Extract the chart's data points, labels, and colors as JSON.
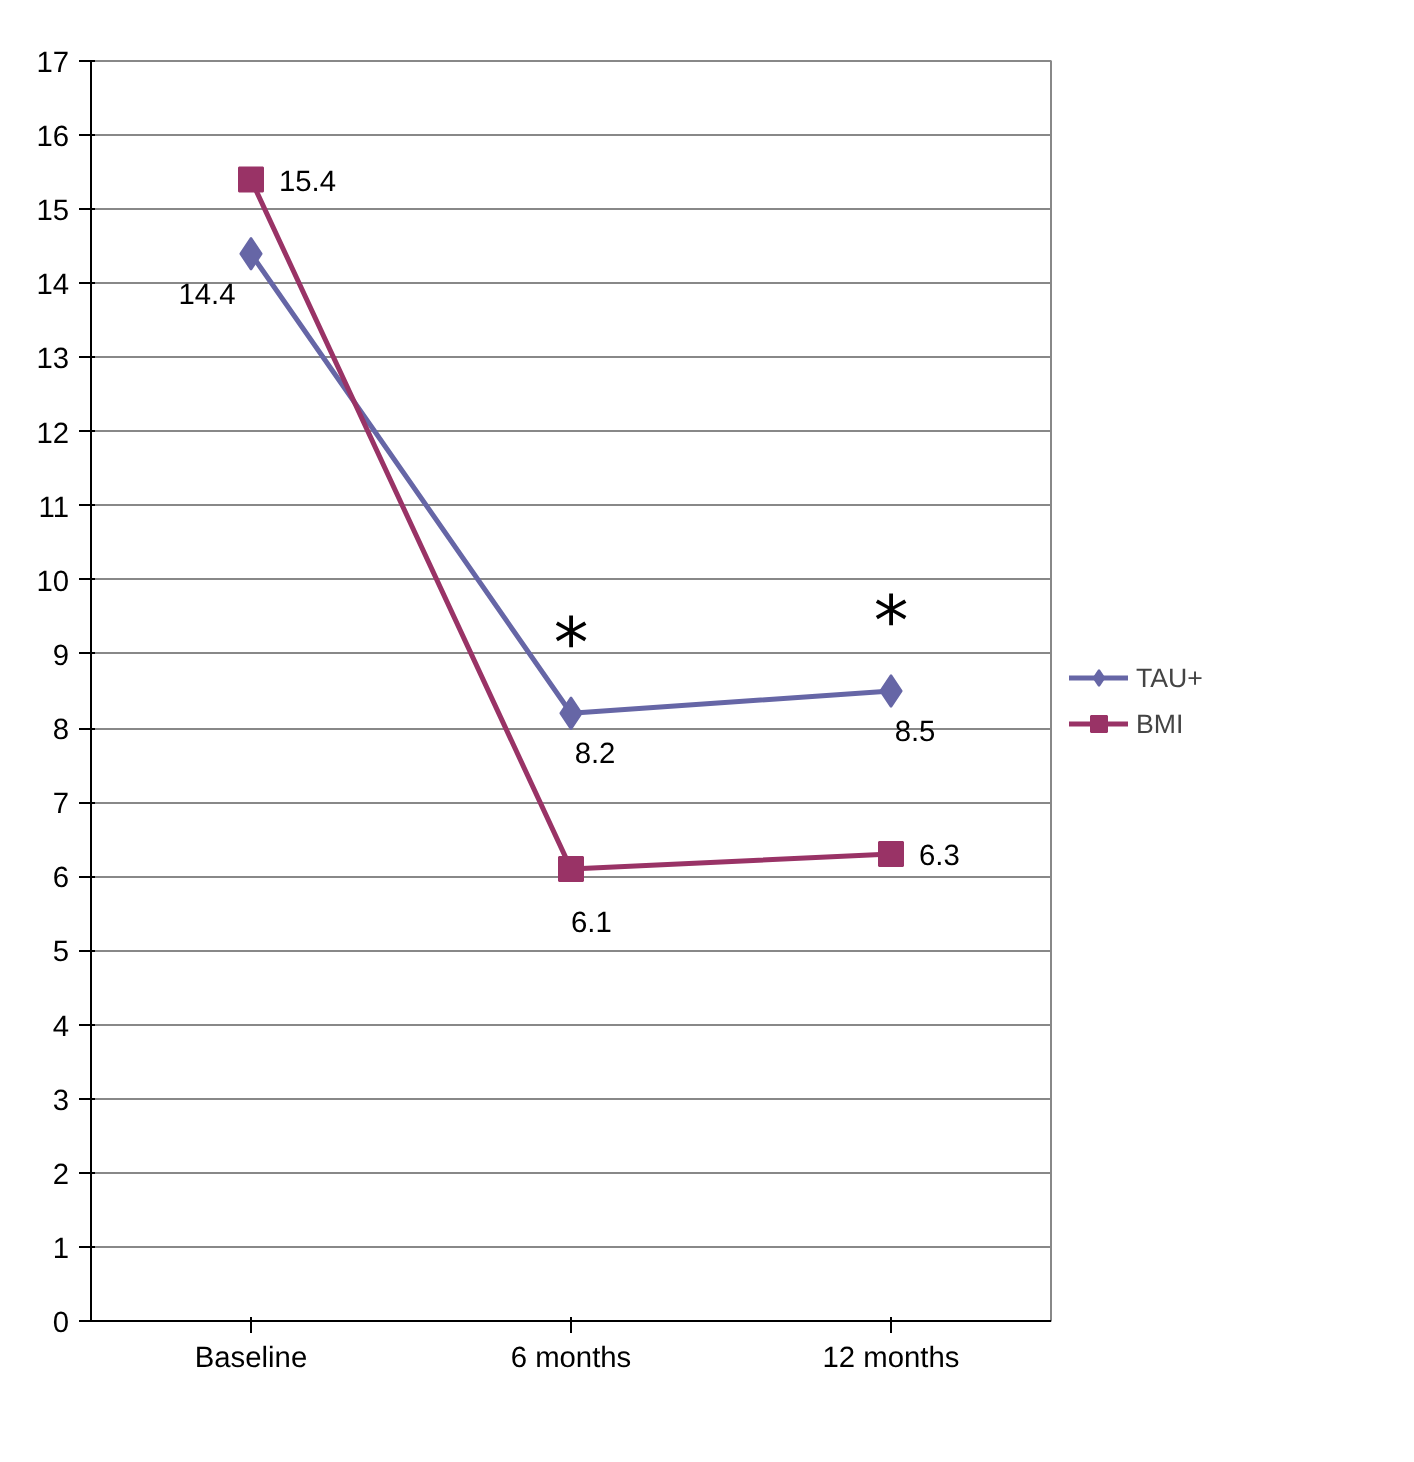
{
  "chart_data": {
    "type": "line",
    "categories": [
      "Baseline",
      "6 months",
      "12 months"
    ],
    "series": [
      {
        "name": "TAU+",
        "color": "#6666a6",
        "values": [
          14.4,
          8.2,
          8.5
        ],
        "marker": "diamond"
      },
      {
        "name": "BMI",
        "color": "#993366",
        "values": [
          15.4,
          6.1,
          6.3
        ],
        "marker": "square"
      }
    ],
    "ylim": [
      0,
      17
    ],
    "yticks": [
      0,
      1,
      2,
      3,
      4,
      5,
      6,
      7,
      8,
      9,
      10,
      11,
      12,
      13,
      14,
      15,
      16,
      17
    ],
    "grid": "y",
    "legend": "right",
    "data_labels": true,
    "line_style": "solid",
    "annotations": [
      {
        "text": "*",
        "x": "6 months",
        "y": 8.2
      },
      {
        "text": "*",
        "x": "12 months",
        "y": 8.5
      }
    ]
  }
}
